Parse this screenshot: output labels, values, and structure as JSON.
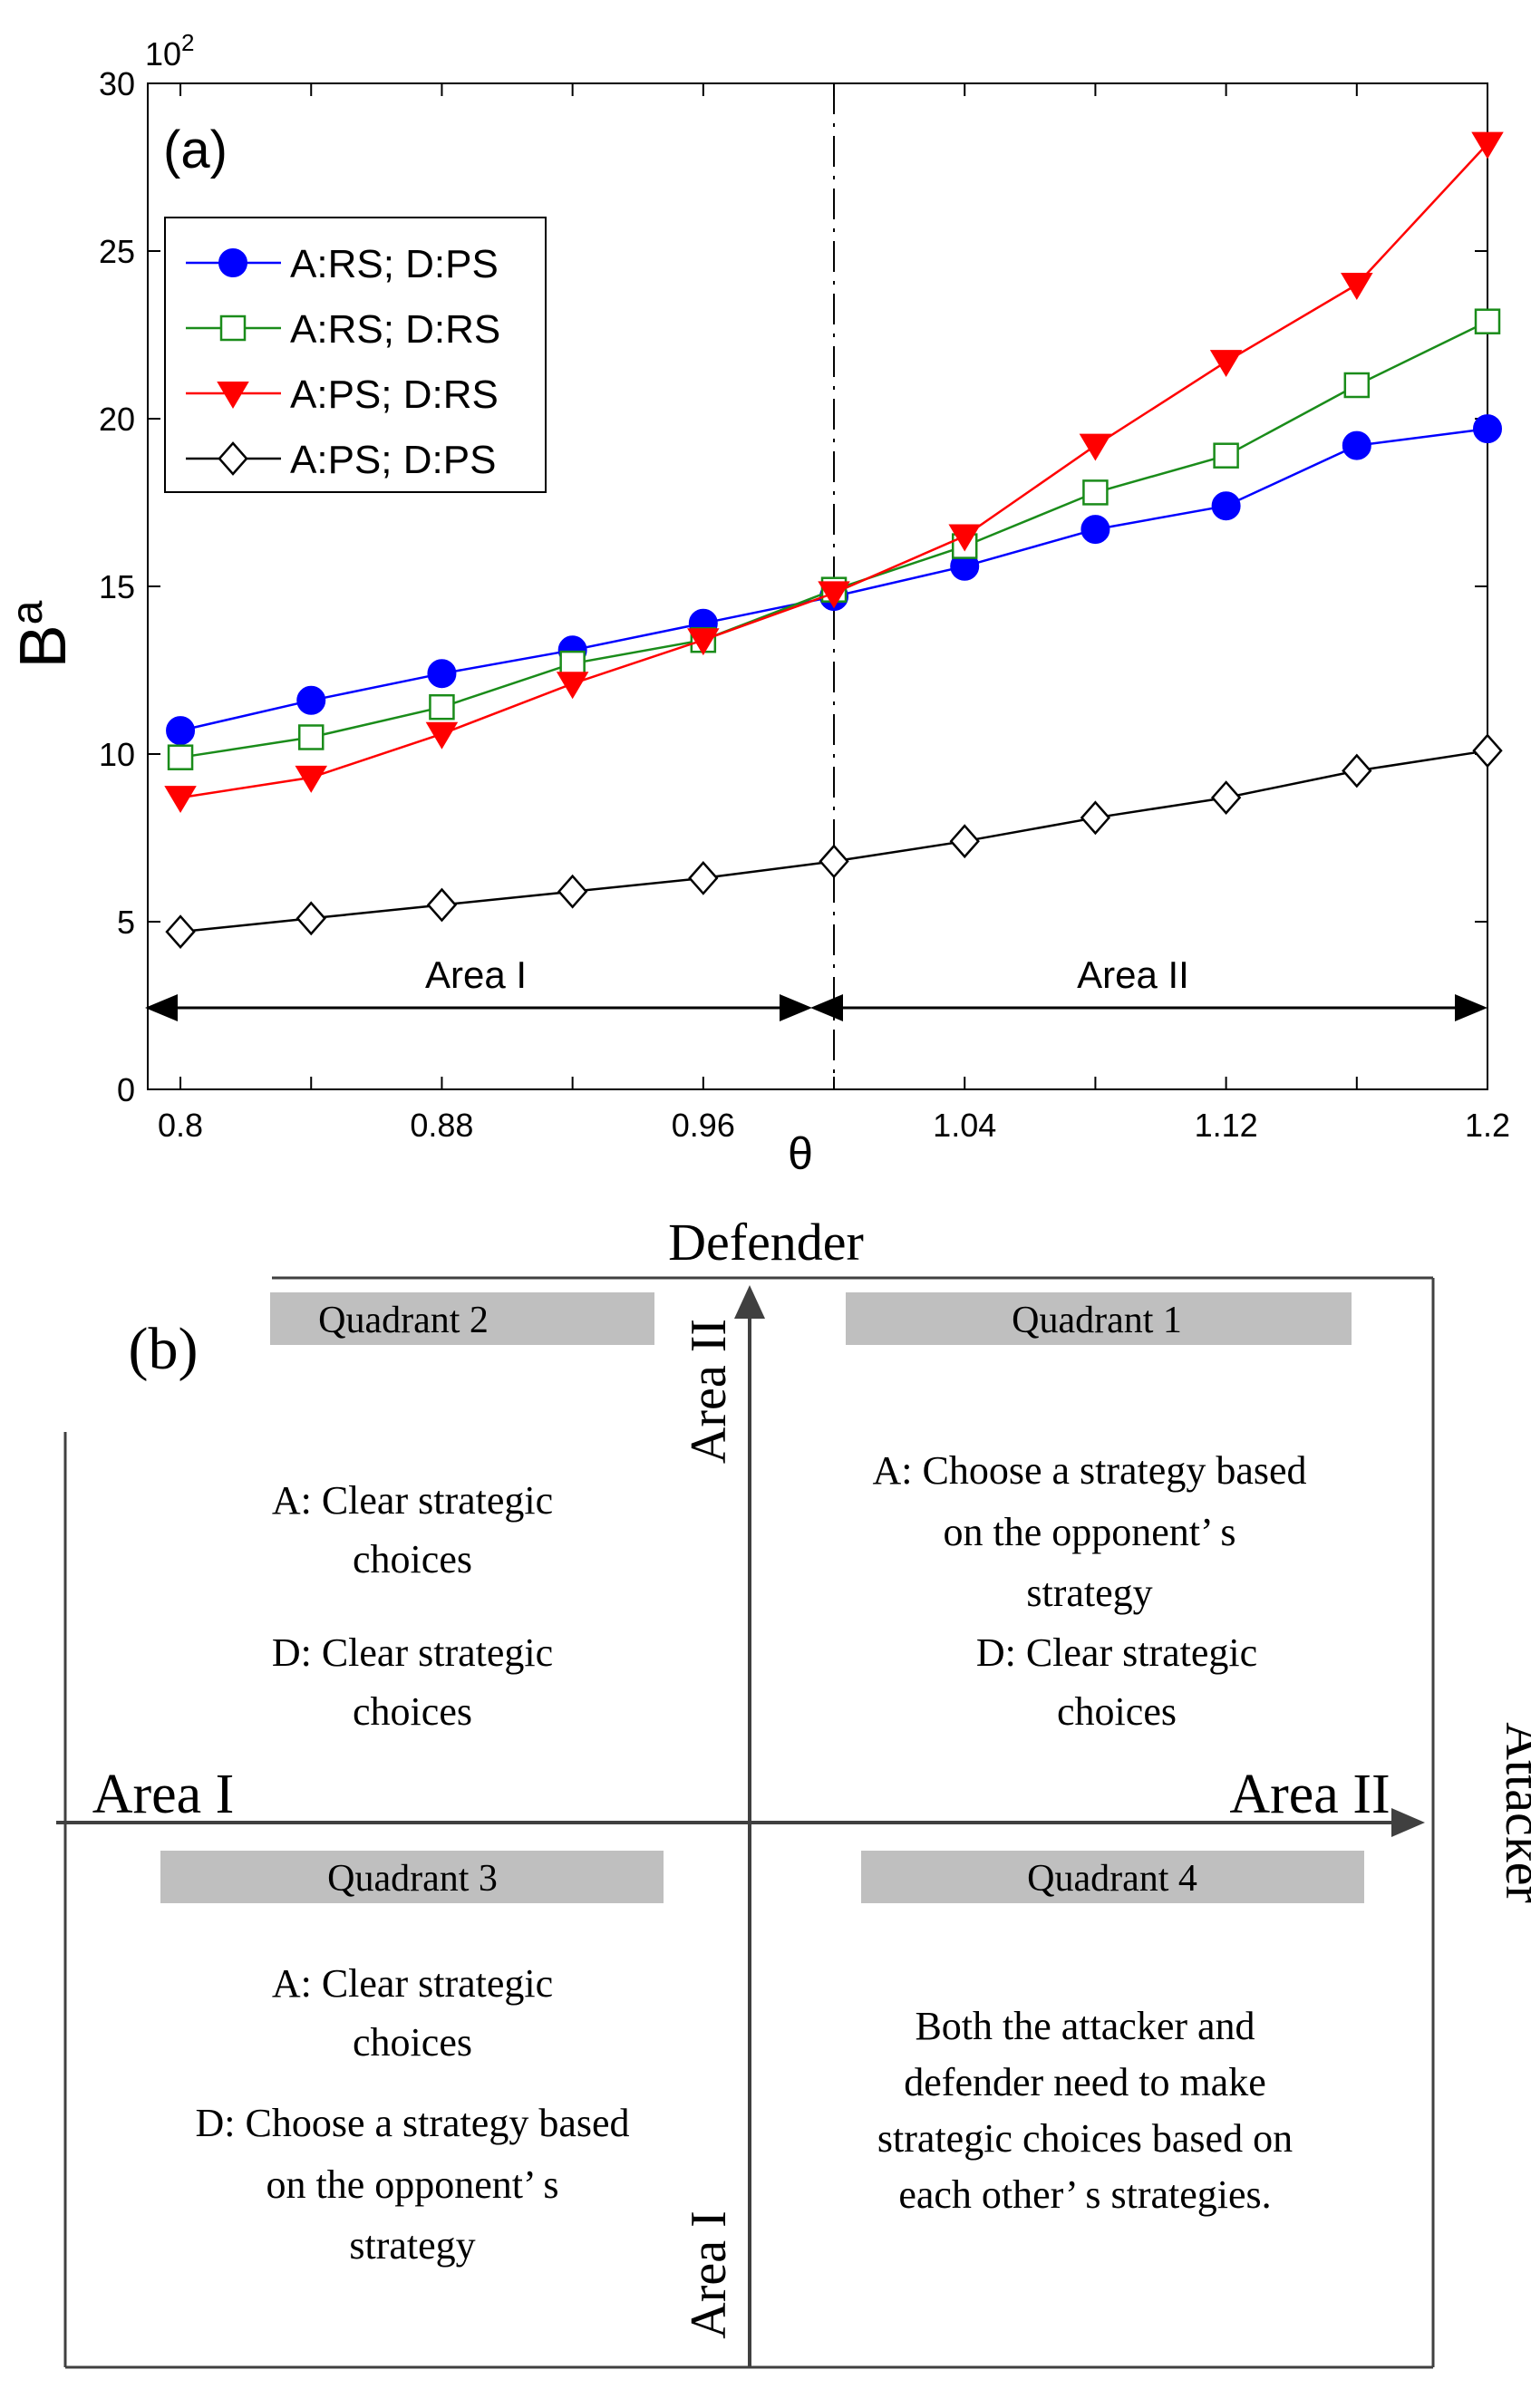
{
  "chart_data": {
    "type": "line",
    "panel_label": "(a)",
    "ylabel": "B",
    "ylabel_superscript": "a",
    "xlabel": "θ",
    "y_scale_label": "10",
    "y_scale_exponent": "2",
    "xlim": [
      0.79,
      1.2
    ],
    "ylim": [
      0,
      30
    ],
    "x_tick_labels": [
      "0.8",
      "0.88",
      "0.96",
      "1.04",
      "1.12",
      "1.2"
    ],
    "x_tick_values": [
      0.8,
      0.88,
      0.96,
      1.04,
      1.12,
      1.2
    ],
    "x_minor_ticks": [
      0.84,
      0.92,
      1.0,
      1.08,
      1.16
    ],
    "y_tick_labels": [
      "0",
      "5",
      "10",
      "15",
      "20",
      "25",
      "30"
    ],
    "y_tick_values": [
      0,
      5,
      10,
      15,
      20,
      25,
      30
    ],
    "x": [
      0.8,
      0.84,
      0.88,
      0.92,
      0.96,
      1.0,
      1.04,
      1.08,
      1.12,
      1.16,
      1.2
    ],
    "divider_x": 1.0,
    "legend_position": "top-left",
    "grid": false,
    "series": [
      {
        "name": "A:RS; D:PS",
        "color": "#0000ff",
        "marker": "circle-filled",
        "values": [
          10.7,
          11.6,
          12.4,
          13.1,
          13.9,
          14.7,
          15.6,
          16.7,
          17.4,
          19.2,
          19.7
        ]
      },
      {
        "name": "A:RS; D:RS",
        "color": "#1a8c1a",
        "marker": "square-open",
        "values": [
          9.9,
          10.5,
          11.4,
          12.7,
          13.4,
          14.9,
          16.2,
          17.8,
          18.9,
          21.0,
          22.9
        ]
      },
      {
        "name": "A:PS; D:RS",
        "color": "#ff0000",
        "marker": "triangle-down-filled",
        "values": [
          8.7,
          9.3,
          10.6,
          12.1,
          13.4,
          14.8,
          16.5,
          19.2,
          21.7,
          24.0,
          28.2
        ]
      },
      {
        "name": "A:PS; D:PS",
        "color": "#000000",
        "marker": "diamond-open",
        "values": [
          4.7,
          5.1,
          5.5,
          5.9,
          6.3,
          6.8,
          7.4,
          8.1,
          8.7,
          9.5,
          10.1
        ]
      }
    ],
    "annotations": {
      "area1": "Area I",
      "area2": "Area II"
    }
  },
  "diagram": {
    "panel_label": "(b)",
    "top_axis_label": "Defender",
    "right_axis_label": "Attacker",
    "left_axis_label": "Area I",
    "right_axis_end_label": "Area II",
    "vertical_top_label": "Area II",
    "vertical_bottom_label": "Area I",
    "quadrants": [
      {
        "title": "Quadrant 2",
        "lines": [
          "A: Clear strategic",
          "choices",
          "D: Clear strategic",
          "choices"
        ]
      },
      {
        "title": "Quadrant 1",
        "lines": [
          "A: Choose a strategy based",
          "on the opponent’ s",
          "strategy",
          "D: Clear strategic",
          "choices"
        ]
      },
      {
        "title": "Quadrant 3",
        "lines": [
          "A: Clear strategic",
          "choices",
          "D: Choose a strategy based",
          "on the opponent’ s",
          "strategy"
        ]
      },
      {
        "title": "Quadrant 4",
        "lines": [
          "Both the attacker and",
          "defender need to make",
          "strategic choices based on",
          "each other’ s strategies."
        ]
      }
    ],
    "colors": {
      "title_box": "#bfbfbf",
      "axis": "#404040"
    }
  }
}
